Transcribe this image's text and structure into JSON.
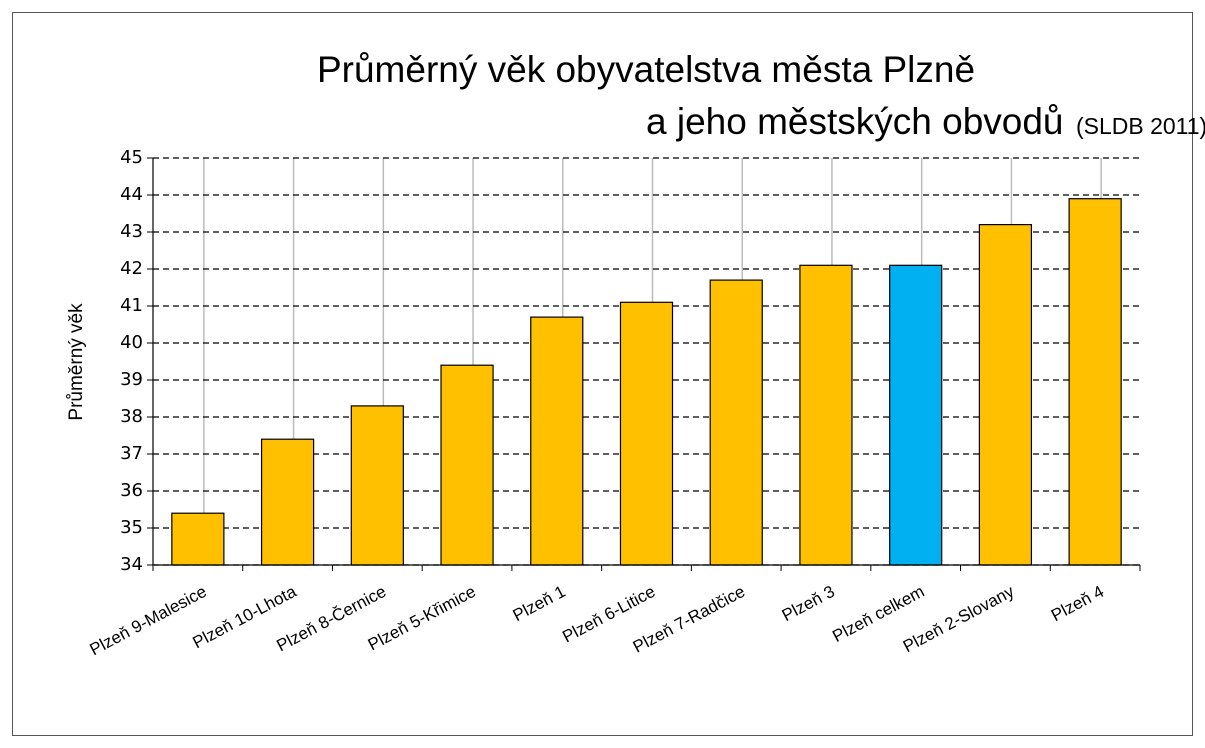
{
  "chart_data": {
    "type": "bar",
    "title": [
      "Průměrný věk obyvatelstva města Plzně",
      "a jeho městských obvodů"
    ],
    "subtitle": "(SLDB 2011)",
    "y_label": "Průměrný věk",
    "categories": [
      "Plzeň 9-Malesice",
      "Plzeň 10-Lhota",
      "Plzeň 8-Černice",
      "Plzeň 5-Křimice",
      "Plzeň 1",
      "Plzeň 6-Litice",
      "Plzeň 7-Radčice",
      "Plzeň 3",
      "Plzeň celkem",
      "Plzeň 2-Slovany",
      "Plzeň 4"
    ],
    "values": [
      35.4,
      37.4,
      38.3,
      39.4,
      40.7,
      41.1,
      41.7,
      42.1,
      42.1,
      43.2,
      43.9
    ],
    "colors": [
      "#ffc000",
      "#ffc000",
      "#ffc000",
      "#ffc000",
      "#ffc000",
      "#ffc000",
      "#ffc000",
      "#ffc000",
      "#00b0f0",
      "#ffc000",
      "#ffc000"
    ],
    "ylim": [
      34,
      45
    ],
    "yticks": [
      34,
      35,
      36,
      37,
      38,
      39,
      40,
      41,
      42,
      43,
      44,
      45
    ],
    "grid": true
  }
}
